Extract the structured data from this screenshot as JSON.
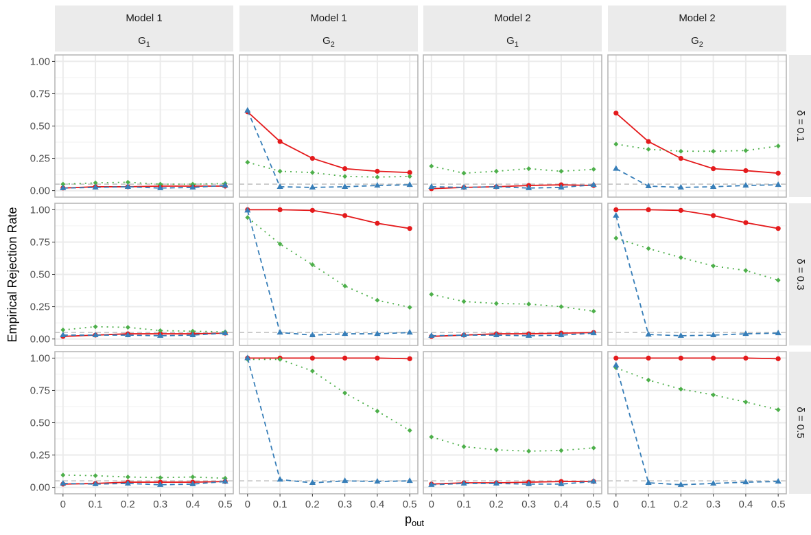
{
  "chart_data": {
    "type": "line",
    "ylabel": "Empirical Rejection Rate",
    "xlabel": "p",
    "xlabel_sub": "out",
    "x": [
      0,
      0.1,
      0.2,
      0.3,
      0.4,
      0.5
    ],
    "xticks": [
      "0",
      "0.1",
      "0.2",
      "0.3",
      "0.4",
      "0.5"
    ],
    "yticks": [
      "0.00",
      "0.25",
      "0.50",
      "0.75",
      "1.00"
    ],
    "ytick_values": [
      0,
      0.25,
      0.5,
      0.75,
      1.0
    ],
    "xlim": [
      -0.025,
      0.525
    ],
    "ylim": [
      -0.05,
      1.05
    ],
    "grid": true,
    "reference_line": {
      "y": 0.05,
      "style": "dashed",
      "color": "#bfbfbf"
    },
    "series_styles": [
      {
        "color": "#e41a1c",
        "marker": "circle",
        "line": "solid"
      },
      {
        "color": "#4daf4a",
        "marker": "diamond",
        "line": "dotted"
      },
      {
        "color": "#377eb8",
        "marker": "triangle",
        "line": "dashed"
      }
    ],
    "columns": [
      {
        "model": "Model  1",
        "g": "G",
        "g_sub": "1"
      },
      {
        "model": "Model  1",
        "g": "G",
        "g_sub": "2"
      },
      {
        "model": "Model  2",
        "g": "G",
        "g_sub": "1"
      },
      {
        "model": "Model  2",
        "g": "G",
        "g_sub": "2"
      }
    ],
    "rows": [
      "δ  =  0.1",
      "δ  =  0.3",
      "δ  =  0.5"
    ],
    "panels": [
      [
        [
          [
            0.02,
            0.03,
            0.03,
            0.035,
            0.035,
            0.035
          ],
          [
            0.05,
            0.06,
            0.065,
            0.05,
            0.05,
            0.055
          ],
          [
            0.02,
            0.025,
            0.03,
            0.02,
            0.025,
            0.04
          ]
        ],
        [
          [
            0.61,
            0.38,
            0.25,
            0.17,
            0.15,
            0.14
          ],
          [
            0.22,
            0.15,
            0.14,
            0.11,
            0.105,
            0.11
          ],
          [
            0.62,
            0.03,
            0.025,
            0.03,
            0.04,
            0.045
          ]
        ],
        [
          [
            0.015,
            0.025,
            0.03,
            0.04,
            0.045,
            0.04
          ],
          [
            0.19,
            0.135,
            0.15,
            0.17,
            0.15,
            0.165
          ],
          [
            0.03,
            0.025,
            0.03,
            0.02,
            0.025,
            0.045
          ]
        ],
        [
          [
            0.6,
            0.38,
            0.25,
            0.17,
            0.155,
            0.135
          ],
          [
            0.36,
            0.32,
            0.305,
            0.305,
            0.31,
            0.345
          ],
          [
            0.17,
            0.035,
            0.025,
            0.03,
            0.04,
            0.045
          ]
        ]
      ],
      [
        [
          [
            0.02,
            0.03,
            0.04,
            0.04,
            0.04,
            0.045
          ],
          [
            0.07,
            0.095,
            0.09,
            0.065,
            0.06,
            0.055
          ],
          [
            0.03,
            0.03,
            0.03,
            0.025,
            0.03,
            0.045
          ]
        ],
        [
          [
            1.0,
            1.0,
            0.995,
            0.955,
            0.895,
            0.855
          ],
          [
            0.94,
            0.735,
            0.575,
            0.41,
            0.3,
            0.245
          ],
          [
            0.995,
            0.05,
            0.03,
            0.04,
            0.04,
            0.05
          ]
        ],
        [
          [
            0.02,
            0.03,
            0.04,
            0.04,
            0.045,
            0.05
          ],
          [
            0.345,
            0.29,
            0.275,
            0.27,
            0.25,
            0.215
          ],
          [
            0.025,
            0.03,
            0.03,
            0.025,
            0.03,
            0.045
          ]
        ],
        [
          [
            1.0,
            1.0,
            0.995,
            0.955,
            0.9,
            0.855
          ],
          [
            0.78,
            0.7,
            0.63,
            0.565,
            0.53,
            0.455
          ],
          [
            0.955,
            0.035,
            0.025,
            0.03,
            0.04,
            0.045
          ]
        ]
      ],
      [
        [
          [
            0.025,
            0.03,
            0.04,
            0.04,
            0.04,
            0.045
          ],
          [
            0.095,
            0.09,
            0.08,
            0.075,
            0.08,
            0.07
          ],
          [
            0.03,
            0.025,
            0.03,
            0.02,
            0.025,
            0.045
          ]
        ],
        [
          [
            1.0,
            1.0,
            1.0,
            1.0,
            1.0,
            0.995
          ],
          [
            0.99,
            0.99,
            0.9,
            0.73,
            0.59,
            0.44
          ],
          [
            1.0,
            0.06,
            0.035,
            0.05,
            0.045,
            0.05
          ]
        ],
        [
          [
            0.025,
            0.035,
            0.035,
            0.04,
            0.045,
            0.045
          ],
          [
            0.39,
            0.315,
            0.29,
            0.28,
            0.285,
            0.305
          ],
          [
            0.02,
            0.03,
            0.03,
            0.025,
            0.025,
            0.045
          ]
        ],
        [
          [
            1.0,
            1.0,
            1.0,
            1.0,
            1.0,
            0.995
          ],
          [
            0.925,
            0.83,
            0.76,
            0.715,
            0.66,
            0.6
          ],
          [
            0.945,
            0.035,
            0.02,
            0.03,
            0.04,
            0.045
          ]
        ]
      ]
    ]
  }
}
